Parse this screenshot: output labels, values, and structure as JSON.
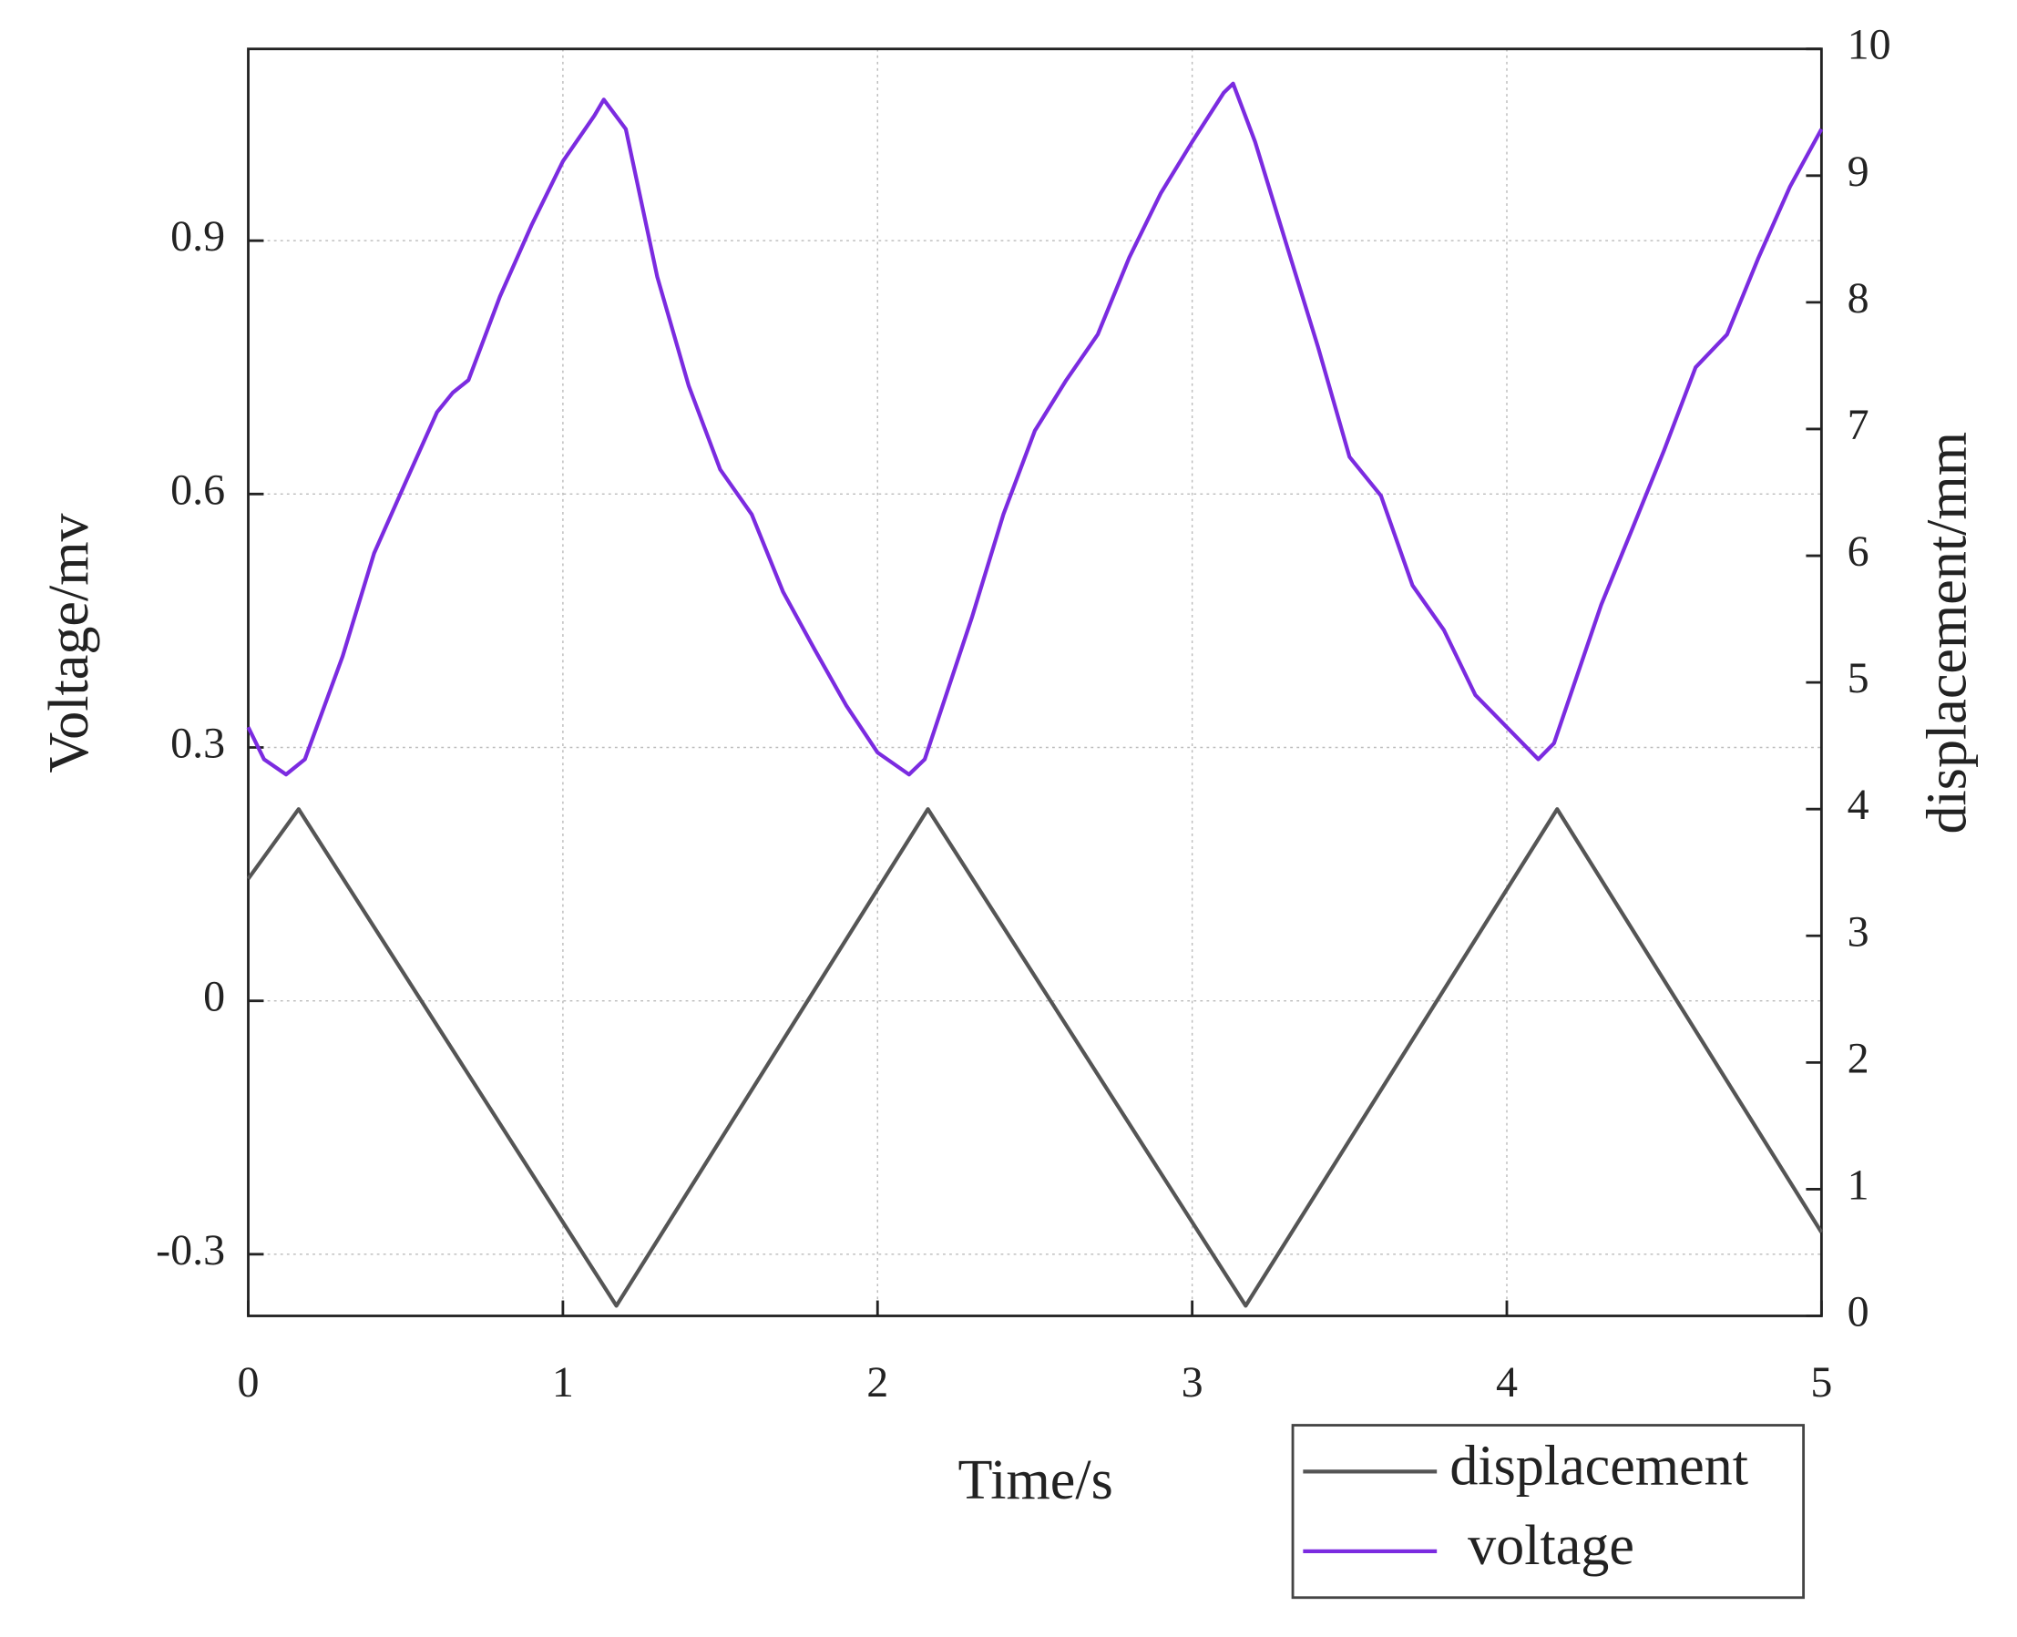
{
  "chart_data": {
    "type": "line",
    "x_label": "Time/s",
    "y_label": "Voltage/mv",
    "y2_label": "displacement/mm",
    "xlim": [
      0,
      5
    ],
    "xticks": [
      0,
      1,
      2,
      3,
      4,
      5
    ],
    "ylim": [
      -0.373,
      1.127
    ],
    "yticks": [
      -0.3,
      0,
      0.3,
      0.6,
      0.9
    ],
    "y2lim": [
      0,
      10
    ],
    "y2ticks": [
      0,
      1,
      2,
      3,
      4,
      5,
      6,
      7,
      8,
      9,
      10
    ],
    "grid": true,
    "legend": "bottom-right",
    "series": [
      {
        "name": "displacement",
        "color": "#555555",
        "axis": "y2",
        "x": [
          0,
          0.16,
          1.17,
          2.16,
          3.17,
          4.16,
          5
        ],
        "values": [
          3.45,
          4.0,
          0.08,
          4.0,
          0.08,
          4.0,
          0.66
        ]
      },
      {
        "name": "voltage",
        "color": "#7b2be0",
        "x": [
          0,
          0.05,
          0.12,
          0.18,
          0.3,
          0.4,
          0.5,
          0.6,
          0.65,
          0.7,
          0.8,
          0.9,
          1.0,
          1.1,
          1.13,
          1.2,
          1.3,
          1.4,
          1.5,
          1.6,
          1.7,
          1.8,
          1.9,
          2.0,
          2.1,
          2.15,
          2.3,
          2.4,
          2.5,
          2.6,
          2.7,
          2.8,
          2.9,
          3.0,
          3.1,
          3.13,
          3.2,
          3.3,
          3.4,
          3.5,
          3.6,
          3.7,
          3.8,
          3.9,
          4.0,
          4.1,
          4.15,
          4.3,
          4.4,
          4.5,
          4.6,
          4.7,
          4.8,
          4.9,
          5.0
        ],
        "values": [
          0.324,
          0.286,
          0.268,
          0.286,
          0.408,
          0.53,
          0.614,
          0.697,
          0.72,
          0.735,
          0.834,
          0.918,
          0.994,
          1.048,
          1.067,
          1.032,
          0.857,
          0.728,
          0.629,
          0.576,
          0.484,
          0.416,
          0.35,
          0.294,
          0.268,
          0.286,
          0.454,
          0.576,
          0.675,
          0.735,
          0.789,
          0.88,
          0.956,
          1.017,
          1.075,
          1.086,
          1.017,
          0.895,
          0.774,
          0.644,
          0.598,
          0.492,
          0.439,
          0.362,
          0.324,
          0.286,
          0.305,
          0.469,
          0.56,
          0.652,
          0.75,
          0.789,
          0.88,
          0.964,
          1.032
        ]
      }
    ]
  }
}
